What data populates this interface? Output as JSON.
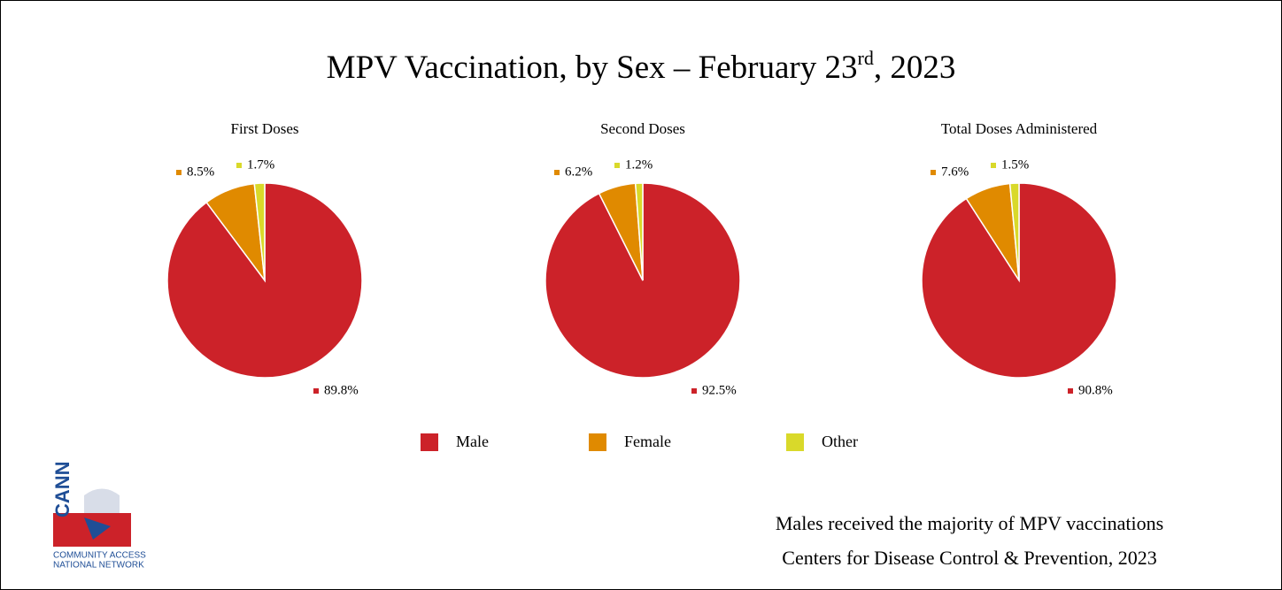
{
  "title": [
    "MPV Vaccination, by Sex – February 23",
    "rd",
    ", 2023"
  ],
  "chart_data": [
    {
      "type": "pie",
      "title": "First Doses",
      "categories": [
        "Male",
        "Female",
        "Other"
      ],
      "values": [
        89.8,
        8.5,
        1.7
      ],
      "value_labels": [
        "89.8%",
        "8.5%",
        "1.7%"
      ],
      "colors": [
        "#cc2229",
        "#e08a00",
        "#d9d92a"
      ]
    },
    {
      "type": "pie",
      "title": "Second Doses",
      "categories": [
        "Male",
        "Female",
        "Other"
      ],
      "values": [
        92.5,
        6.2,
        1.2
      ],
      "value_labels": [
        "92.5%",
        "6.2%",
        "1.2%"
      ],
      "colors": [
        "#cc2229",
        "#e08a00",
        "#d9d92a"
      ]
    },
    {
      "type": "pie",
      "title": "Total Doses Administered",
      "categories": [
        "Male",
        "Female",
        "Other"
      ],
      "values": [
        90.8,
        7.6,
        1.5
      ],
      "value_labels": [
        "90.8%",
        "7.6%",
        "1.5%"
      ],
      "colors": [
        "#cc2229",
        "#e08a00",
        "#d9d92a"
      ]
    }
  ],
  "notes": [
    "Males received the majority of MPV vaccinations",
    "Centers for Disease Control & Prevention, 2023"
  ],
  "logo": {
    "name": "CANN",
    "lines": [
      "COMMUNITY ACCESS",
      "NATIONAL NETWORK"
    ]
  }
}
